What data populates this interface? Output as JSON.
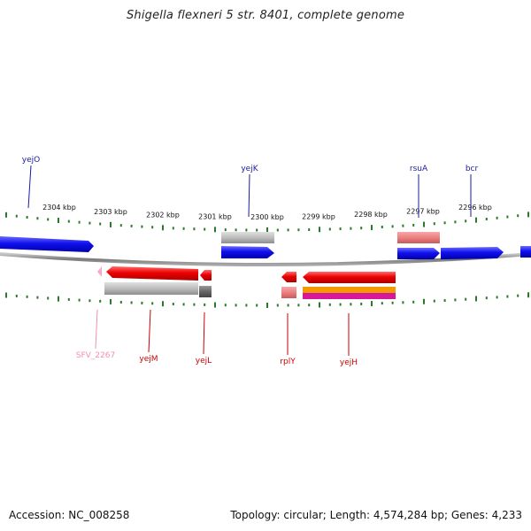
{
  "title": "Shigella flexneri 5 str. 8401, complete genome",
  "footer": {
    "accession": "Accession: NC_008258",
    "summary": "Topology: circular; Length: 4,574,284 bp; Genes: 4,233"
  },
  "colors": {
    "forward_gene": "#1a1aff",
    "reverse_gene": "#ee0000",
    "forward_label": "#1a1aa6",
    "reverse_label": "#cc0000",
    "pseudo_label": "#f48fb0",
    "ticks": "#2a7a2a",
    "backbone": "#888888"
  },
  "scale": {
    "labels": [
      "2304 kbp",
      "2303 kbp",
      "2302 kbp",
      "2301 kbp",
      "2300 kbp",
      "2299 kbp",
      "2298 kbp",
      "2297 kbp",
      "2296 kbp"
    ]
  },
  "genes": [
    {
      "name": "yejO",
      "strand": "forward"
    },
    {
      "name": "yejK",
      "strand": "forward"
    },
    {
      "name": "rsuA",
      "strand": "forward"
    },
    {
      "name": "bcr",
      "strand": "forward"
    },
    {
      "name": "SFV_2267",
      "strand": "reverse",
      "pseudo": true
    },
    {
      "name": "yejM",
      "strand": "reverse"
    },
    {
      "name": "yejL",
      "strand": "reverse"
    },
    {
      "name": "rplY",
      "strand": "reverse"
    },
    {
      "name": "yejH",
      "strand": "reverse"
    }
  ]
}
